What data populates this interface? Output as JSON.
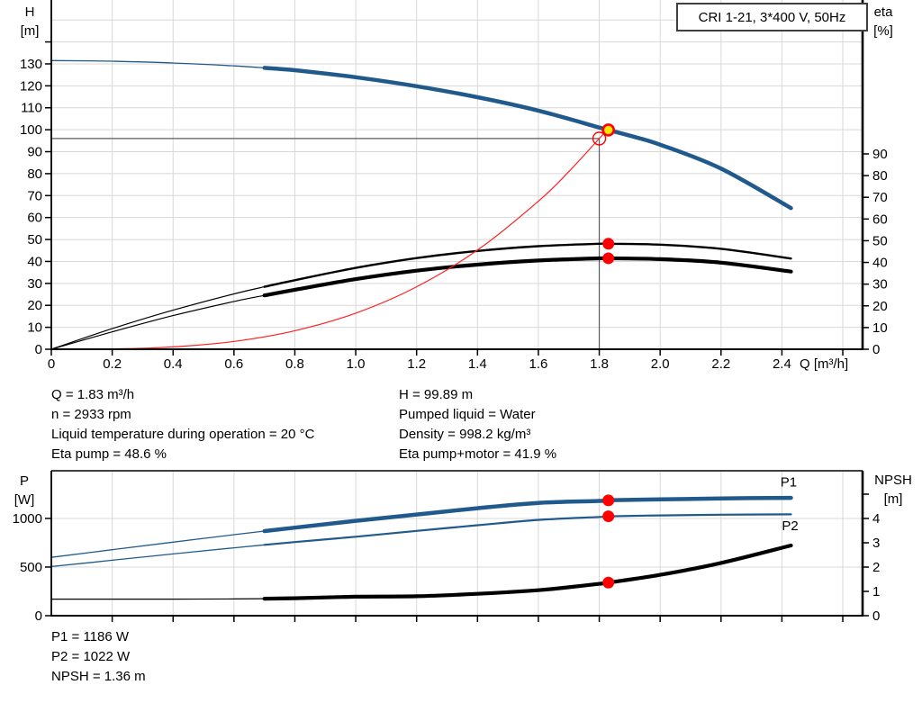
{
  "title_box": {
    "label": "CRI 1-21, 3*400 V, 50Hz"
  },
  "colors": {
    "curve_blue": "#205a8c",
    "curve_black": "#000000",
    "marker_red": "#ff0000",
    "marker_yellow": "#ffe600",
    "system_red": "#ff2020",
    "grid": "#d8d8d8",
    "axis": "#000000",
    "crosshair": "#5a5a5a",
    "label_blue": "#205a8c"
  },
  "labels": {
    "h_unit": [
      "H",
      "[m]"
    ],
    "eta_unit": [
      "eta",
      "[%]"
    ],
    "p_unit": [
      "P",
      "[W]"
    ],
    "npsh_unit": [
      "NPSH",
      "[m]"
    ]
  },
  "info_top_left": [
    "Q = 1.83 m³/h",
    "n = 2933 rpm",
    "Liquid temperature during operation = 20 °C",
    "Eta pump = 48.6 %"
  ],
  "info_top_right": [
    "H = 99.89 m",
    "Pumped liquid = Water",
    "Density = 998.2 kg/m³",
    "Eta pump+motor = 41.9 %"
  ],
  "info_bottom": [
    "P1 = 1186 W",
    "P2 = 1022 W",
    "NPSH = 1.36 m"
  ],
  "chart_data": [
    {
      "type": "line",
      "title": "CRI 1-21, 3*400 V, 50Hz",
      "x_axis": {
        "label": "Q [m³/h]",
        "min": 0,
        "max": 2.665,
        "decimals": 1
      },
      "y_left": {
        "label": "H [m]",
        "min": 0,
        "max": 159.1,
        "decimals": 0
      },
      "y_right": {
        "label": "eta [%]",
        "min": 0,
        "max": 160.9,
        "decimals": 0
      },
      "x_ticks": [
        0,
        0.2,
        0.4,
        0.6,
        0.8,
        1.0,
        1.2,
        1.4,
        1.6,
        1.8,
        2.0,
        2.2,
        2.4
      ],
      "x_ticks_unlabeled": [
        2.6
      ],
      "left_ticks": [
        0,
        10,
        20,
        30,
        40,
        50,
        60,
        70,
        80,
        90,
        100,
        110,
        120,
        130
      ],
      "left_ticks_unlabeled": [
        140
      ],
      "right_ticks": [
        0,
        10,
        20,
        30,
        40,
        50,
        60,
        70,
        80,
        90
      ],
      "right_ticks_unlabeled": [],
      "grid_v": [
        0.2,
        0.4,
        0.6,
        0.8,
        1.0,
        1.2,
        1.4,
        1.6,
        1.8,
        2.0,
        2.2,
        2.4,
        2.6
      ],
      "grid_h": [
        10,
        20,
        30,
        40,
        50,
        60,
        70,
        80,
        90,
        100,
        110,
        120,
        130,
        140,
        150
      ],
      "border_top": false,
      "crosshair": {
        "q": 1.8,
        "value": 96,
        "axis": "left"
      },
      "series": [
        {
          "name": "eta-pump-curve",
          "axis": "right",
          "color_key": "curve_black",
          "thin_width": 1.2,
          "thick_width": 2.4,
          "thick_from": 0.7,
          "points": [
            [
              0,
              0
            ],
            [
              0.2,
              9.5
            ],
            [
              0.4,
              18
            ],
            [
              0.6,
              25.5
            ],
            [
              0.7,
              28.8
            ],
            [
              0.8,
              31.8
            ],
            [
              1.0,
              37.5
            ],
            [
              1.2,
              42
            ],
            [
              1.4,
              45.3
            ],
            [
              1.6,
              47.5
            ],
            [
              1.8,
              48.6
            ],
            [
              1.83,
              48.6
            ],
            [
              2.0,
              48.2
            ],
            [
              2.2,
              46.3
            ],
            [
              2.43,
              41.8
            ]
          ]
        },
        {
          "name": "eta-pump-motor-curve",
          "axis": "right",
          "color_key": "curve_black",
          "thin_width": 1.2,
          "thick_width": 4.2,
          "thick_from": 0.7,
          "points": [
            [
              0,
              0
            ],
            [
              0.2,
              8
            ],
            [
              0.4,
              15.5
            ],
            [
              0.6,
              22
            ],
            [
              0.7,
              24.8
            ],
            [
              0.8,
              27.4
            ],
            [
              1.0,
              32.3
            ],
            [
              1.2,
              36.2
            ],
            [
              1.4,
              39
            ],
            [
              1.6,
              40.9
            ],
            [
              1.8,
              41.9
            ],
            [
              1.83,
              41.9
            ],
            [
              2.0,
              41.5
            ],
            [
              2.2,
              39.9
            ],
            [
              2.43,
              35.8
            ]
          ]
        },
        {
          "name": "system-curve",
          "axis": "left",
          "color_key": "system_red",
          "thin_width": 1.2,
          "thick_width": 1.2,
          "thick_from": null,
          "points": [
            [
              0,
              0
            ],
            [
              0.2,
              0.13
            ],
            [
              0.4,
              1.05
            ],
            [
              0.6,
              3.56
            ],
            [
              0.8,
              8.43
            ],
            [
              1.0,
              16.46
            ],
            [
              1.2,
              28.45
            ],
            [
              1.4,
              45.17
            ],
            [
              1.6,
              67.4
            ],
            [
              1.7,
              80.9
            ],
            [
              1.8,
              96.0
            ],
            [
              1.83,
              100.5
            ]
          ]
        },
        {
          "name": "head-curve",
          "axis": "left",
          "color_key": "curve_blue",
          "thin_width": 1.3,
          "thick_width": 4.5,
          "thick_from": 0.7,
          "points": [
            [
              0,
              131.5
            ],
            [
              0.2,
              131.2
            ],
            [
              0.4,
              130.4
            ],
            [
              0.6,
              129.1
            ],
            [
              0.7,
              128.2
            ],
            [
              0.8,
              127.1
            ],
            [
              1.0,
              123.9
            ],
            [
              1.2,
              119.8
            ],
            [
              1.4,
              114.8
            ],
            [
              1.6,
              108.7
            ],
            [
              1.8,
              101.0
            ],
            [
              1.83,
              99.89
            ],
            [
              1.9,
              97.3
            ],
            [
              2.0,
              93.2
            ],
            [
              2.2,
              82.3
            ],
            [
              2.43,
              64.3
            ]
          ]
        }
      ],
      "annotations": [],
      "markers": [
        {
          "name": "eta-pump-point",
          "style": "red-dot",
          "q": 1.83,
          "value": 48.6,
          "axis": "right"
        },
        {
          "name": "eta-pump-motor-point",
          "style": "red-dot",
          "q": 1.83,
          "value": 41.9,
          "axis": "right"
        },
        {
          "name": "requested-duty-point",
          "style": "red-open",
          "q": 1.8,
          "value": 96,
          "axis": "left"
        },
        {
          "name": "operating-point",
          "style": "yellow-ring",
          "q": 1.83,
          "value": 99.89,
          "axis": "left"
        }
      ]
    },
    {
      "type": "line",
      "title": "Power and NPSH",
      "x_axis": {
        "label": "",
        "min": 0,
        "max": 2.665,
        "decimals": 1
      },
      "y_left": {
        "label": "P [W]",
        "min": 0,
        "max": 1490,
        "decimals": 0
      },
      "y_right": {
        "label": "NPSH [m]",
        "min": 0,
        "max": 5.963,
        "decimals": 0
      },
      "x_ticks": [],
      "x_ticks_unlabeled": [
        0.2,
        0.4,
        0.6,
        0.8,
        1.0,
        1.2,
        1.4,
        1.6,
        1.8,
        2.0,
        2.2,
        2.4,
        2.6
      ],
      "left_ticks": [
        0,
        500,
        1000
      ],
      "left_ticks_unlabeled": [],
      "right_ticks": [
        0,
        1,
        2,
        3,
        4
      ],
      "right_ticks_unlabeled": [
        5
      ],
      "grid_v": [
        0.2,
        0.4,
        0.6,
        0.8,
        1.0,
        1.2,
        1.4,
        1.6,
        1.8,
        2.0,
        2.2,
        2.4,
        2.6
      ],
      "grid_h": [
        500,
        1000
      ],
      "border_top": true,
      "crosshair": null,
      "series": [
        {
          "name": "p1-curve",
          "axis": "left",
          "color_key": "curve_blue",
          "thin_width": 1.3,
          "thick_width": 4.5,
          "thick_from": 0.7,
          "points": [
            [
              0,
              600
            ],
            [
              0.2,
              678
            ],
            [
              0.4,
              756
            ],
            [
              0.6,
              833
            ],
            [
              0.7,
              870
            ],
            [
              0.8,
              905
            ],
            [
              1.0,
              975
            ],
            [
              1.2,
              1040
            ],
            [
              1.4,
              1105
            ],
            [
              1.6,
              1160
            ],
            [
              1.8,
              1180
            ],
            [
              1.83,
              1186
            ],
            [
              2.0,
              1196
            ],
            [
              2.2,
              1206
            ],
            [
              2.43,
              1211
            ]
          ]
        },
        {
          "name": "p2-curve",
          "axis": "left",
          "color_key": "curve_blue",
          "thin_width": 1.3,
          "thick_width": 2.2,
          "thick_from": 0.7,
          "points": [
            [
              0,
              505
            ],
            [
              0.2,
              570
            ],
            [
              0.4,
              635
            ],
            [
              0.6,
              698
            ],
            [
              0.7,
              728
            ],
            [
              0.8,
              757
            ],
            [
              1.0,
              812
            ],
            [
              1.2,
              872
            ],
            [
              1.4,
              930
            ],
            [
              1.6,
              985
            ],
            [
              1.8,
              1015
            ],
            [
              1.83,
              1022
            ],
            [
              2.0,
              1031
            ],
            [
              2.2,
              1038
            ],
            [
              2.43,
              1042
            ]
          ]
        },
        {
          "name": "npsh-curve",
          "axis": "right",
          "color_key": "curve_black",
          "thin_width": 1.2,
          "thick_width": 4.2,
          "thick_from": 0.7,
          "points": [
            [
              0,
              0.68
            ],
            [
              0.2,
              0.68
            ],
            [
              0.4,
              0.68
            ],
            [
              0.6,
              0.69
            ],
            [
              0.7,
              0.7
            ],
            [
              0.8,
              0.72
            ],
            [
              1.0,
              0.78
            ],
            [
              1.2,
              0.8
            ],
            [
              1.4,
              0.9
            ],
            [
              1.6,
              1.05
            ],
            [
              1.7,
              1.17
            ],
            [
              1.8,
              1.31
            ],
            [
              1.83,
              1.36
            ],
            [
              2.0,
              1.68
            ],
            [
              2.2,
              2.17
            ],
            [
              2.43,
              2.89
            ]
          ]
        }
      ],
      "annotations": [
        {
          "text": "P1",
          "q": 2.395,
          "value": 1330,
          "axis": "left"
        },
        {
          "text": "P2",
          "q": 2.4,
          "value": 880,
          "axis": "left"
        }
      ],
      "markers": [
        {
          "name": "p1-point",
          "style": "red-dot",
          "q": 1.83,
          "value": 1186,
          "axis": "left"
        },
        {
          "name": "p2-point",
          "style": "red-dot",
          "q": 1.83,
          "value": 1022,
          "axis": "left"
        },
        {
          "name": "npsh-point",
          "style": "red-dot",
          "q": 1.83,
          "value": 1.36,
          "axis": "right"
        }
      ]
    }
  ]
}
